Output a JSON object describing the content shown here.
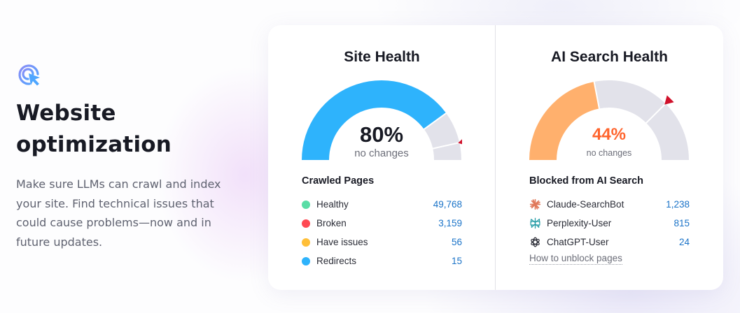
{
  "hero": {
    "icon": "cursor-click-icon",
    "title_line1": "Website",
    "title_line2": "optimization",
    "description": "Make sure LLMs can crawl and index your site. Find technical issues that could cause problems—now and in future updates."
  },
  "site_health": {
    "title": "Site Health",
    "gauge": {
      "value_percent": 80,
      "value_label": "80%",
      "subtitle": "no changes",
      "fill_color": "#2eb3fc",
      "track_color": "#e2e2ea",
      "marker_color": "#d0112b",
      "marker_percent": 93
    },
    "section_title": "Crawled Pages",
    "rows": [
      {
        "label": "Healthy",
        "value": "49,768",
        "color": "#59dda6"
      },
      {
        "label": "Broken",
        "value": "3,159",
        "color": "#ff4953"
      },
      {
        "label": "Have issues",
        "value": "56",
        "color": "#ffbf38"
      },
      {
        "label": "Redirects",
        "value": "15",
        "color": "#2eb3fc"
      }
    ]
  },
  "ai_search_health": {
    "title": "AI Search Health",
    "gauge": {
      "value_percent": 44,
      "value_label": "44%",
      "subtitle": "no changes",
      "fill_color": "#ffb06d",
      "track_color": "#e2e2ea",
      "value_color": "#ff642d",
      "marker_color": "#d0112b",
      "marker_percent": 75
    },
    "section_title": "Blocked from AI Search",
    "rows": [
      {
        "label": "Claude-SearchBot",
        "value": "1,238",
        "icon": "claude-asterisk-icon",
        "icon_color": "#e0785a"
      },
      {
        "label": "Perplexity-User",
        "value": "815",
        "icon": "perplexity-icon",
        "icon_color": "#2a9ea8"
      },
      {
        "label": "ChatGPT-User",
        "value": "24",
        "icon": "openai-icon",
        "icon_color": "#2a2c36"
      }
    ],
    "link_label": "How to unblock pages"
  }
}
